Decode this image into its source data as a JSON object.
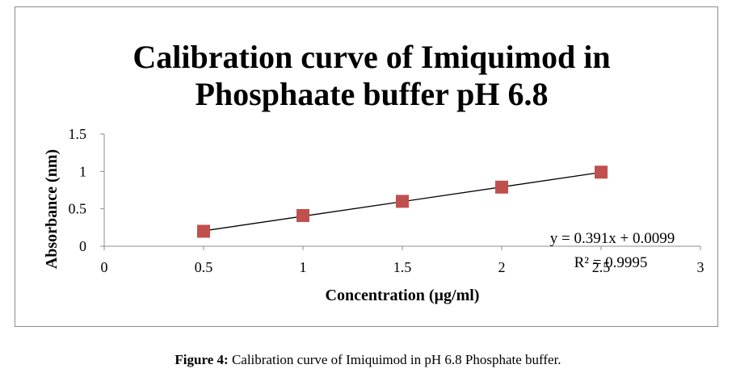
{
  "chart_data": {
    "type": "scatter",
    "title_lines": [
      "Calibration curve of Imiquimod in",
      "Phosphaate buffer pH 6.8"
    ],
    "xlabel": "Concentration (µg/ml)",
    "ylabel": "Absorbance (nm)",
    "xlim": [
      0,
      3
    ],
    "ylim": [
      0,
      1.5
    ],
    "xticks": [
      0,
      0.5,
      1,
      1.5,
      2,
      2.5,
      3
    ],
    "xtick_labels": [
      "0",
      "0.5",
      "1",
      "1.5",
      "2",
      "2.5",
      "3"
    ],
    "yticks": [
      0,
      0.5,
      1,
      1.5
    ],
    "ytick_labels": [
      "0",
      "0.5",
      "1",
      "1.5"
    ],
    "grid": false,
    "legend": "none",
    "series": [
      {
        "x": [
          0.5,
          1,
          1.5,
          2,
          2.5
        ],
        "y": [
          0.2,
          0.41,
          0.6,
          0.79,
          0.99
        ],
        "marker": "square",
        "color": "#c0504d"
      }
    ],
    "trendline": {
      "type": "linear",
      "slope": 0.391,
      "intercept": 0.0099,
      "x_range": [
        0.5,
        2.5
      ],
      "color": "#000000",
      "equation": "y = 0.391x + 0.0099",
      "r_squared": "R² = 0.9995"
    }
  },
  "caption": {
    "label": "Figure 4:",
    "text": " Calibration curve of Imiquimod in pH 6.8 Phosphate buffer."
  }
}
